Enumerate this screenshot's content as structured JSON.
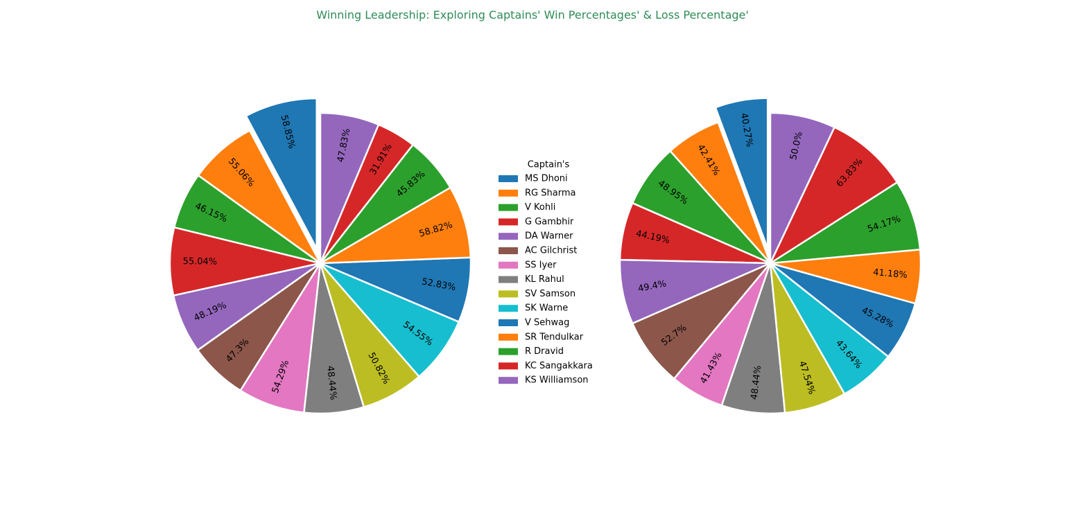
{
  "title": "Winning Leadership: Exploring Captains' Win Percentages' & Loss Percentage'",
  "title_color": "#2e8b57",
  "legend": {
    "title": "Captain's",
    "placement": "center"
  },
  "chart_data": [
    {
      "type": "pie",
      "title": "",
      "categories": [
        "MS Dhoni",
        "RG Sharma",
        "V Kohli",
        "G Gambhir",
        "DA Warner",
        "AC Gilchrist",
        "SS Iyer",
        "KL Rahul",
        "SV Samson",
        "SK Warne",
        "V Sehwag",
        "SR Tendulkar",
        "R Dravid",
        "KC Sangakkara",
        "KS Williamson"
      ],
      "values": [
        58.85,
        55.06,
        46.15,
        55.04,
        48.19,
        47.3,
        54.29,
        48.44,
        50.82,
        54.55,
        52.83,
        58.82,
        45.83,
        31.91,
        47.83
      ],
      "labels": [
        "58.85%",
        "55.06%",
        "46.15%",
        "55.04%",
        "48.19%",
        "47.3%",
        "54.29%",
        "48.44%",
        "50.82%",
        "54.55%",
        "52.83%",
        "58.82%",
        "45.83%",
        "31.91%",
        "47.83%"
      ],
      "colors": [
        "#1f77b4",
        "#ff7f0e",
        "#2ca02c",
        "#d62728",
        "#9467bd",
        "#8c564b",
        "#e377c2",
        "#7f7f7f",
        "#bcbd22",
        "#17becf",
        "#1f77b4",
        "#ff7f0e",
        "#2ca02c",
        "#d62728",
        "#9467bd"
      ],
      "explode": [
        0.1,
        0,
        0,
        0,
        0,
        0,
        0,
        0,
        0,
        0,
        0,
        0,
        0,
        0,
        0
      ],
      "start_angle": 90,
      "direction": "counterclockwise"
    },
    {
      "type": "pie",
      "title": "",
      "categories": [
        "MS Dhoni",
        "RG Sharma",
        "V Kohli",
        "G Gambhir",
        "DA Warner",
        "AC Gilchrist",
        "SS Iyer",
        "KL Rahul",
        "SV Samson",
        "SK Warne",
        "V Sehwag",
        "SR Tendulkar",
        "R Dravid",
        "KC Sangakkara",
        "KS Williamson"
      ],
      "values": [
        40.27,
        42.41,
        48.95,
        44.19,
        49.4,
        52.7,
        41.43,
        48.44,
        47.54,
        43.64,
        45.28,
        41.18,
        54.17,
        63.83,
        50.0
      ],
      "labels": [
        "40.27%",
        "42.41%",
        "48.95%",
        "44.19%",
        "49.4%",
        "52.7%",
        "41.43%",
        "48.44%",
        "47.54%",
        "43.64%",
        "45.28%",
        "41.18%",
        "54.17%",
        "63.83%",
        "50.0%"
      ],
      "colors": [
        "#1f77b4",
        "#ff7f0e",
        "#2ca02c",
        "#d62728",
        "#9467bd",
        "#8c564b",
        "#e377c2",
        "#7f7f7f",
        "#bcbd22",
        "#17becf",
        "#1f77b4",
        "#ff7f0e",
        "#2ca02c",
        "#d62728",
        "#9467bd"
      ],
      "explode": [
        0.1,
        0,
        0,
        0,
        0,
        0,
        0,
        0,
        0,
        0,
        0,
        0,
        0,
        0,
        0
      ],
      "start_angle": 90,
      "direction": "counterclockwise"
    }
  ]
}
